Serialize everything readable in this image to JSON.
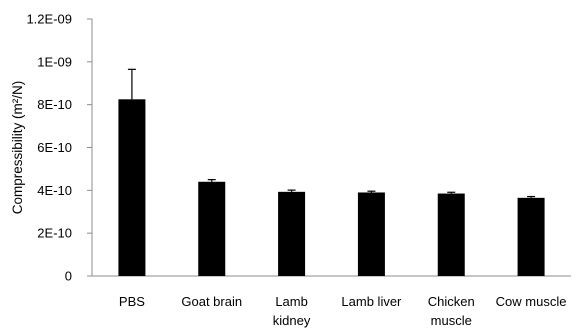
{
  "chart_data": {
    "type": "bar",
    "title": "",
    "xlabel": "",
    "ylabel": "Compressibility (m²/N)",
    "categories": [
      "PBS",
      "Goat brain",
      "Lamb kidney",
      "Lamb liver",
      "Chicken muscle",
      "Cow muscle"
    ],
    "category_lines": [
      [
        "PBS"
      ],
      [
        "Goat brain"
      ],
      [
        "Lamb",
        "kidney"
      ],
      [
        "Lamb liver"
      ],
      [
        "Chicken",
        "muscle"
      ],
      [
        "Cow muscle"
      ]
    ],
    "values": [
      8.25e-10,
      4.4e-10,
      3.93e-10,
      3.9e-10,
      3.85e-10,
      3.65e-10
    ],
    "errors": [
      1.4e-10,
      1e-11,
      8e-12,
      6e-12,
      6e-12,
      6e-12
    ],
    "ylim": [
      0,
      1.2e-09
    ],
    "yticks": [
      0,
      2e-10,
      4e-10,
      6e-10,
      8e-10,
      1e-09,
      1.2e-09
    ],
    "ytick_labels": [
      "0",
      "2E-10",
      "4E-10",
      "6E-10",
      "8E-10",
      "1E-09",
      "1.2E-09"
    ],
    "grid": false,
    "legend": "none",
    "bar_color": "#000000",
    "axis_color": "#8c8c8c"
  }
}
